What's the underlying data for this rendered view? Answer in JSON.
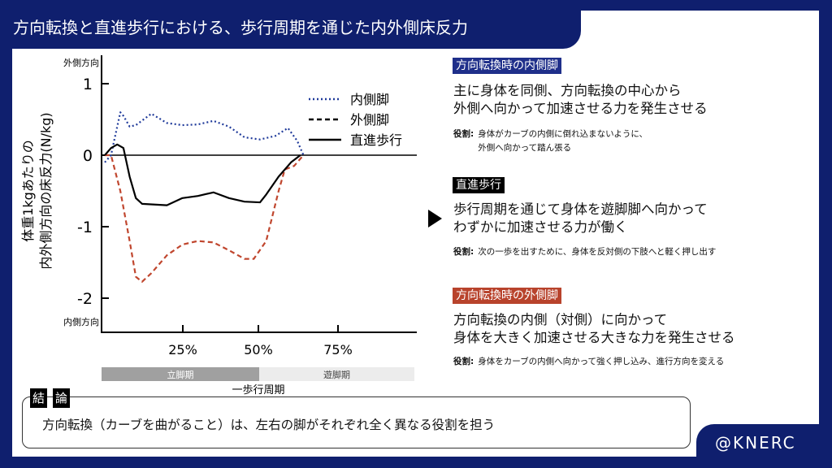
{
  "title": "方向転換と直進歩行における、歩行周期を通じた内外側床反力",
  "credit": "@KNERC",
  "colors": {
    "navy": "#0f1f6e",
    "inner": "#1f3a9a",
    "outer": "#c0462e",
    "straight": "#000000"
  },
  "chart_data": {
    "type": "line",
    "ylabel_lines": [
      "体重1kgあたりの",
      "内外側方向の床反力(N/kg)"
    ],
    "y_top_label": "外側方向",
    "y_bottom_label": "内側方向",
    "xlabel": "一歩行周期",
    "ylim": [
      -2.4,
      1.35
    ],
    "xlim": [
      0,
      100
    ],
    "yticks": [
      {
        "v": 1,
        "label": "1"
      },
      {
        "v": 0,
        "label": "0"
      },
      {
        "v": -1,
        "label": "-1"
      },
      {
        "v": -2,
        "label": "-2"
      }
    ],
    "xticks": [
      {
        "v": 25,
        "label": "25%"
      },
      {
        "v": 50,
        "label": "50%"
      },
      {
        "v": 75,
        "label": "75%"
      }
    ],
    "phases": [
      {
        "label": "立脚期",
        "from": 0,
        "to": 50
      },
      {
        "label": "遊脚期",
        "from": 50,
        "to": 100
      }
    ],
    "series": [
      {
        "name": "内側脚",
        "style": "dotted",
        "color": "#1f3a9a",
        "x": [
          0,
          2,
          5,
          6,
          8,
          10,
          15,
          20,
          25,
          30,
          35,
          40,
          45,
          50,
          55,
          59,
          62,
          64
        ],
        "y": [
          -0.1,
          0,
          0.6,
          0.55,
          0.4,
          0.42,
          0.58,
          0.45,
          0.42,
          0.43,
          0.48,
          0.4,
          0.25,
          0.22,
          0.27,
          0.38,
          0.2,
          0
        ]
      },
      {
        "name": "外側脚",
        "style": "dashed",
        "color": "#c0462e",
        "x": [
          0,
          2,
          5,
          8,
          10,
          12,
          15,
          20,
          25,
          30,
          35,
          40,
          45,
          48,
          52,
          56,
          58,
          61,
          64
        ],
        "y": [
          0,
          0,
          -0.5,
          -1.2,
          -1.7,
          -1.77,
          -1.65,
          -1.4,
          -1.25,
          -1.2,
          -1.22,
          -1.33,
          -1.45,
          -1.45,
          -1.2,
          -0.5,
          -0.2,
          -0.15,
          0
        ]
      },
      {
        "name": "直進歩行",
        "style": "solid",
        "color": "#000000",
        "x": [
          0,
          2,
          4,
          6,
          8,
          10,
          12,
          20,
          25,
          30,
          35,
          40,
          45,
          50,
          52,
          56,
          60,
          63
        ],
        "y": [
          0,
          0.1,
          0.15,
          0.1,
          -0.3,
          -0.6,
          -0.68,
          -0.7,
          -0.6,
          -0.57,
          -0.52,
          -0.6,
          -0.65,
          -0.66,
          -0.55,
          -0.3,
          -0.1,
          0
        ]
      }
    ]
  },
  "sections": [
    {
      "tag": "方向転換時の内側脚",
      "tag_color": "#1f2f8a",
      "lines": [
        "主に身体を同側、方向転換の中心から",
        "外側へ向かって加速させる力を発生させる"
      ],
      "role_label": "役割:",
      "role_lines": [
        "身体がカーブの内側に倒れ込まないように、",
        "外側へ向かって踏ん張る"
      ]
    },
    {
      "tag": "直進歩行",
      "tag_color": "#000000",
      "lines": [
        "歩行周期を通じて身体を遊脚脚へ向かって",
        "わずかに加速させる力が働く"
      ],
      "role_label": "役割:",
      "role_lines": [
        "次の一歩を出すために、身体を反対側の下肢へと軽く押し出す"
      ]
    },
    {
      "tag": "方向転換時の外側脚",
      "tag_color": "#b8432c",
      "lines": [
        "方向転換の内側（対側）に向かって",
        "身体を大きく加速させる大きな力を発生させる"
      ],
      "role_label": "役割:",
      "role_lines": [
        "身体をカーブの内側へ向かって強く押し込み、進行方向を変える"
      ]
    }
  ],
  "conclusion": {
    "label_chars": [
      "結",
      "論"
    ],
    "text": "方向転換（カーブを曲がること）は、左右の脚がそれぞれ全く異なる役割を担う"
  }
}
